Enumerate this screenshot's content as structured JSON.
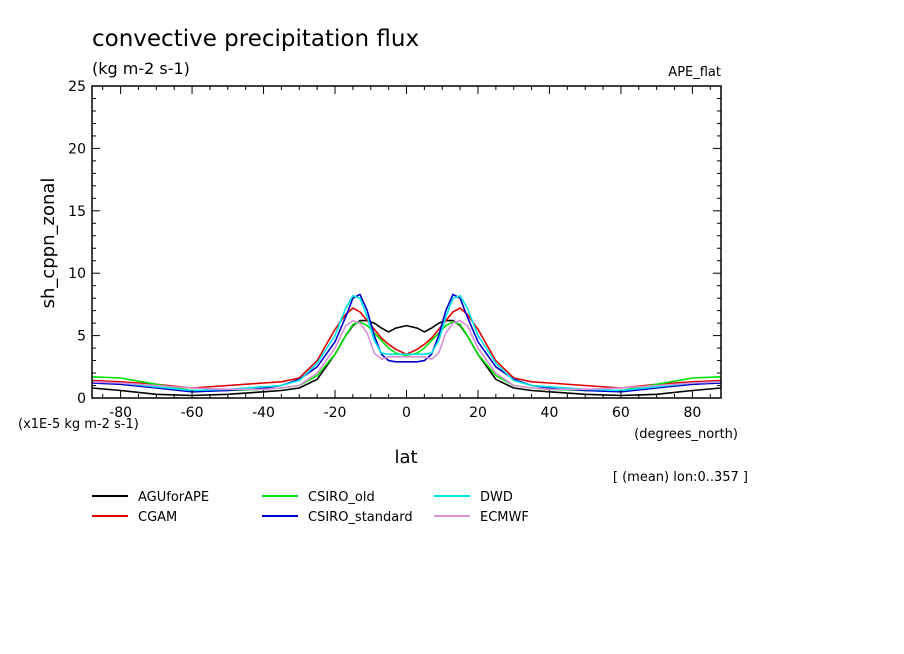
{
  "chart_data": {
    "type": "line",
    "title": "convective precipitation flux",
    "units": "(kg m-2 s-1)",
    "experiment": "APE_flat",
    "xlabel": "lat",
    "x_units": "(degrees_north)",
    "ylabel": "sh_cppn_zonal",
    "y_scale_note": "(x1E-5 kg m-2 s-1)",
    "averaging_note": "[ (mean) lon:0..357 ]",
    "xlim": [
      -88,
      88
    ],
    "ylim": [
      0,
      25
    ],
    "x_ticks": [
      -80,
      -60,
      -40,
      -20,
      0,
      20,
      40,
      60,
      80
    ],
    "y_ticks": [
      0,
      5,
      10,
      15,
      20,
      25
    ],
    "x": [
      -88,
      -80,
      -70,
      -60,
      -50,
      -40,
      -35,
      -30,
      -25,
      -20,
      -17,
      -15,
      -13,
      -11,
      -9,
      -7,
      -5,
      -3,
      0,
      3,
      5,
      7,
      9,
      11,
      13,
      15,
      17,
      20,
      25,
      30,
      35,
      40,
      50,
      60,
      70,
      80,
      88
    ],
    "series": [
      {
        "name": "AGUforAPE",
        "color": "#000000",
        "values": [
          0.8,
          0.6,
          0.3,
          0.2,
          0.3,
          0.5,
          0.6,
          0.8,
          1.5,
          3.5,
          5.0,
          5.8,
          6.2,
          6.2,
          6.0,
          5.6,
          5.3,
          5.6,
          5.8,
          5.6,
          5.3,
          5.6,
          6.0,
          6.2,
          6.2,
          5.8,
          5.0,
          3.5,
          1.5,
          0.8,
          0.6,
          0.5,
          0.3,
          0.2,
          0.3,
          0.6,
          0.8
        ]
      },
      {
        "name": "CGAM",
        "color": "#e00000",
        "values": [
          1.4,
          1.3,
          1.1,
          0.8,
          1.0,
          1.2,
          1.3,
          1.6,
          3.0,
          5.5,
          6.7,
          7.2,
          6.9,
          6.2,
          5.5,
          4.8,
          4.3,
          3.9,
          3.5,
          3.9,
          4.3,
          4.8,
          5.5,
          6.2,
          6.9,
          7.2,
          6.7,
          5.5,
          3.0,
          1.6,
          1.3,
          1.2,
          1.0,
          0.8,
          1.1,
          1.3,
          1.4
        ]
      },
      {
        "name": "CSIRO_old",
        "color": "#00e000",
        "values": [
          1.7,
          1.6,
          1.1,
          0.6,
          0.6,
          0.7,
          0.8,
          1.0,
          1.8,
          3.5,
          5.0,
          5.9,
          6.1,
          5.8,
          5.2,
          4.6,
          4.0,
          3.6,
          3.4,
          3.6,
          4.0,
          4.6,
          5.2,
          5.8,
          6.1,
          5.9,
          5.0,
          3.5,
          1.8,
          1.0,
          0.8,
          0.7,
          0.6,
          0.6,
          1.1,
          1.6,
          1.7
        ]
      },
      {
        "name": "CSIRO_standard",
        "color": "#0000cc",
        "values": [
          1.2,
          1.1,
          0.8,
          0.5,
          0.6,
          0.8,
          1.0,
          1.5,
          2.5,
          4.5,
          6.5,
          8.0,
          8.3,
          7.0,
          5.0,
          3.5,
          3.0,
          2.9,
          2.9,
          2.9,
          3.0,
          3.5,
          5.0,
          7.0,
          8.3,
          8.0,
          6.5,
          4.5,
          2.5,
          1.5,
          1.0,
          0.8,
          0.6,
          0.5,
          0.8,
          1.1,
          1.2
        ]
      },
      {
        "name": "DWD",
        "color": "#00e5e5",
        "values": [
          1.3,
          1.2,
          0.9,
          0.6,
          0.7,
          0.9,
          1.0,
          1.4,
          2.8,
          5.0,
          7.2,
          8.2,
          8.0,
          6.5,
          4.6,
          3.6,
          3.5,
          3.5,
          3.5,
          3.5,
          3.5,
          3.6,
          4.6,
          6.5,
          8.0,
          8.2,
          7.2,
          5.0,
          2.8,
          1.4,
          1.0,
          0.9,
          0.7,
          0.6,
          0.9,
          1.2,
          1.3
        ]
      },
      {
        "name": "ECMWF",
        "color": "#d890d8",
        "values": [
          1.3,
          1.2,
          1.0,
          0.8,
          0.7,
          0.7,
          0.8,
          1.0,
          2.0,
          4.0,
          5.8,
          6.2,
          6.0,
          5.2,
          3.6,
          3.1,
          3.3,
          3.3,
          3.3,
          3.3,
          3.3,
          3.1,
          3.6,
          5.2,
          6.0,
          6.2,
          5.8,
          4.0,
          2.0,
          1.0,
          0.8,
          0.7,
          0.7,
          0.8,
          1.0,
          1.2,
          1.3
        ]
      }
    ]
  }
}
